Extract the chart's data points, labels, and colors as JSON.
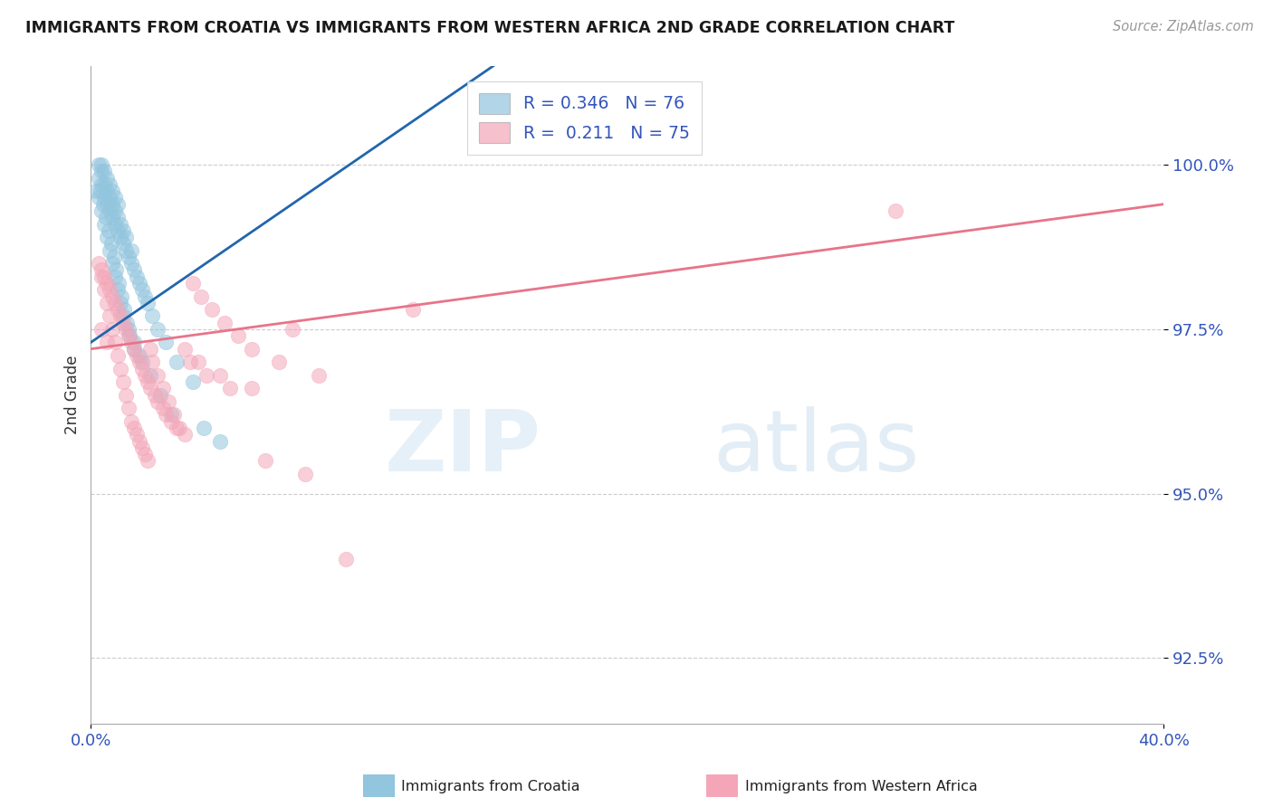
{
  "title": "IMMIGRANTS FROM CROATIA VS IMMIGRANTS FROM WESTERN AFRICA 2ND GRADE CORRELATION CHART",
  "source": "Source: ZipAtlas.com",
  "ylabel": "2nd Grade",
  "xlim": [
    0.0,
    40.0
  ],
  "ylim": [
    91.5,
    101.5
  ],
  "yticks": [
    92.5,
    95.0,
    97.5,
    100.0
  ],
  "ytick_labels": [
    "92.5%",
    "95.0%",
    "97.5%",
    "100.0%"
  ],
  "xticks": [
    0.0,
    40.0
  ],
  "xtick_labels": [
    "0.0%",
    "40.0%"
  ],
  "r_blue": "0.346",
  "n_blue": 76,
  "r_pink": "0.211",
  "n_pink": 75,
  "blue_color": "#92c5de",
  "pink_color": "#f4a6b8",
  "blue_line_color": "#2166ac",
  "pink_line_color": "#e8748a",
  "legend_label_blue": "Immigrants from Croatia",
  "legend_label_pink": "Immigrants from Western Africa",
  "title_color": "#1a1a1a",
  "axis_color": "#3355bb",
  "watermark_zip": "ZIP",
  "watermark_atlas": "atlas",
  "blue_scatter_x": [
    0.2,
    0.3,
    0.3,
    0.4,
    0.4,
    0.4,
    0.5,
    0.5,
    0.5,
    0.6,
    0.6,
    0.6,
    0.7,
    0.7,
    0.7,
    0.8,
    0.8,
    0.8,
    0.9,
    0.9,
    0.9,
    1.0,
    1.0,
    1.0,
    1.1,
    1.1,
    1.2,
    1.2,
    1.3,
    1.3,
    1.4,
    1.5,
    1.5,
    1.6,
    1.7,
    1.8,
    1.9,
    2.0,
    2.1,
    2.3,
    2.5,
    2.8,
    3.2,
    3.8,
    0.3,
    0.4,
    0.5,
    0.6,
    0.7,
    0.8,
    0.9,
    1.0,
    1.1,
    1.2,
    1.4,
    1.6,
    1.8,
    2.2,
    2.6,
    3.0,
    4.2,
    4.8,
    0.35,
    0.45,
    0.55,
    0.65,
    0.75,
    0.85,
    0.95,
    1.05,
    1.15,
    1.25,
    1.35,
    1.45,
    1.6,
    1.9
  ],
  "blue_scatter_y": [
    99.6,
    99.8,
    100.0,
    99.7,
    99.9,
    100.0,
    99.5,
    99.7,
    99.9,
    99.4,
    99.6,
    99.8,
    99.3,
    99.5,
    99.7,
    99.2,
    99.4,
    99.6,
    99.1,
    99.3,
    99.5,
    99.0,
    99.2,
    99.4,
    98.9,
    99.1,
    98.8,
    99.0,
    98.7,
    98.9,
    98.6,
    98.5,
    98.7,
    98.4,
    98.3,
    98.2,
    98.1,
    98.0,
    97.9,
    97.7,
    97.5,
    97.3,
    97.0,
    96.7,
    99.5,
    99.3,
    99.1,
    98.9,
    98.7,
    98.5,
    98.3,
    98.1,
    97.9,
    97.7,
    97.5,
    97.3,
    97.1,
    96.8,
    96.5,
    96.2,
    96.0,
    95.8,
    99.6,
    99.4,
    99.2,
    99.0,
    98.8,
    98.6,
    98.4,
    98.2,
    98.0,
    97.8,
    97.6,
    97.4,
    97.2,
    97.0
  ],
  "pink_scatter_x": [
    0.3,
    0.4,
    0.5,
    0.6,
    0.7,
    0.8,
    0.9,
    1.0,
    1.1,
    1.2,
    1.3,
    1.4,
    1.5,
    1.6,
    1.7,
    1.8,
    1.9,
    2.0,
    2.1,
    2.2,
    2.3,
    2.5,
    2.7,
    2.9,
    3.1,
    3.3,
    3.5,
    3.8,
    4.1,
    4.5,
    5.0,
    5.5,
    6.0,
    7.0,
    8.5,
    0.4,
    0.6,
    0.8,
    1.0,
    1.2,
    1.4,
    1.6,
    1.8,
    2.0,
    2.2,
    2.5,
    2.8,
    3.2,
    3.7,
    4.3,
    5.2,
    6.5,
    8.0,
    0.5,
    0.7,
    0.9,
    1.1,
    1.3,
    1.5,
    1.7,
    1.9,
    2.1,
    2.4,
    2.7,
    3.0,
    3.5,
    4.0,
    4.8,
    6.0,
    7.5,
    9.5,
    0.4,
    0.6,
    12.0,
    30.0
  ],
  "pink_scatter_y": [
    98.5,
    98.3,
    98.1,
    97.9,
    97.7,
    97.5,
    97.3,
    97.1,
    96.9,
    96.7,
    96.5,
    96.3,
    96.1,
    96.0,
    95.9,
    95.8,
    95.7,
    95.6,
    95.5,
    97.2,
    97.0,
    96.8,
    96.6,
    96.4,
    96.2,
    96.0,
    95.9,
    98.2,
    98.0,
    97.8,
    97.6,
    97.4,
    97.2,
    97.0,
    96.8,
    98.4,
    98.2,
    98.0,
    97.8,
    97.6,
    97.4,
    97.2,
    97.0,
    96.8,
    96.6,
    96.4,
    96.2,
    96.0,
    97.0,
    96.8,
    96.6,
    95.5,
    95.3,
    98.3,
    98.1,
    97.9,
    97.7,
    97.5,
    97.3,
    97.1,
    96.9,
    96.7,
    96.5,
    96.3,
    96.1,
    97.2,
    97.0,
    96.8,
    96.6,
    97.5,
    94.0,
    97.5,
    97.3,
    97.8,
    99.3
  ]
}
